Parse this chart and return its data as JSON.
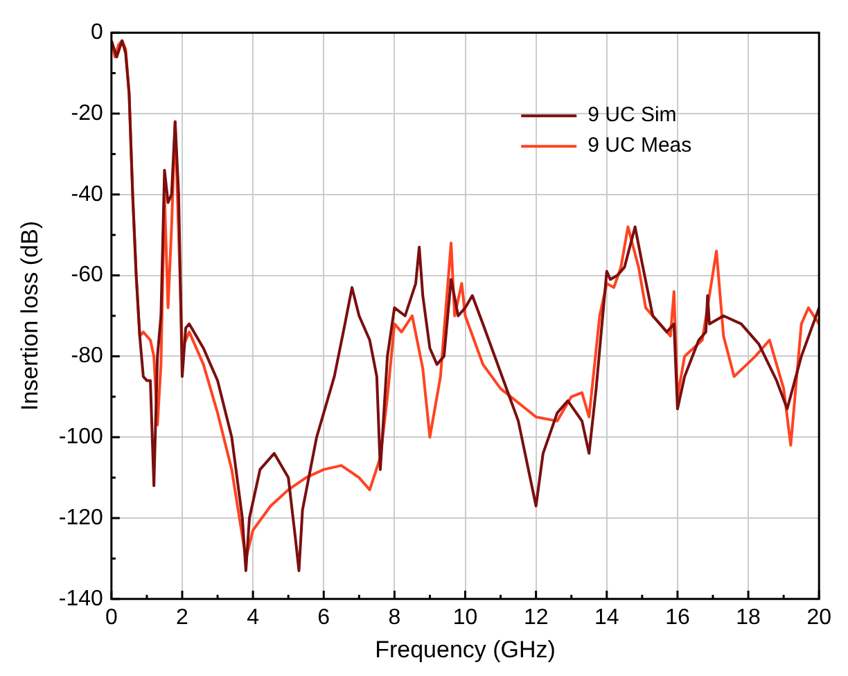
{
  "chart_data": {
    "type": "line",
    "xlabel": "Frequency (GHz)",
    "ylabel": "Insertion loss (dB)",
    "xlim": [
      0,
      20
    ],
    "ylim": [
      -140,
      0
    ],
    "xticks": [
      0,
      2,
      4,
      6,
      8,
      10,
      12,
      14,
      16,
      18,
      20
    ],
    "yticks": [
      -140,
      -120,
      -100,
      -80,
      -60,
      -40,
      -20,
      0
    ],
    "grid": true,
    "legend": "top right",
    "marker": "none",
    "line_style": "solid",
    "series": [
      {
        "name": "9 UC Sim",
        "color": "#7b0f0f",
        "x": [
          0,
          0.15,
          0.3,
          0.4,
          0.5,
          0.6,
          0.7,
          0.8,
          0.9,
          1.0,
          1.1,
          1.2,
          1.3,
          1.4,
          1.5,
          1.6,
          1.7,
          1.8,
          1.9,
          2.0,
          2.1,
          2.2,
          2.6,
          3.0,
          3.4,
          3.7,
          3.8,
          3.9,
          4.2,
          4.6,
          5.0,
          5.2,
          5.3,
          5.4,
          5.8,
          6.3,
          6.6,
          6.8,
          7.0,
          7.3,
          7.5,
          7.6,
          7.8,
          8.0,
          8.3,
          8.6,
          8.7,
          8.8,
          9.0,
          9.2,
          9.4,
          9.6,
          9.8,
          10.0,
          10.2,
          10.5,
          11.0,
          11.5,
          12.0,
          12.2,
          12.6,
          12.9,
          13.3,
          13.5,
          13.7,
          14.0,
          14.1,
          14.3,
          14.5,
          14.8,
          15.0,
          15.3,
          15.7,
          15.9,
          16.0,
          16.2,
          16.6,
          16.8,
          16.85,
          16.9,
          17.3,
          17.8,
          18.3,
          18.8,
          19.1,
          19.5,
          20.0
        ],
        "values": [
          -2,
          -6,
          -2,
          -5,
          -15,
          -40,
          -60,
          -75,
          -85,
          -86,
          -86,
          -112,
          -80,
          -70,
          -34,
          -42,
          -40,
          -22,
          -40,
          -85,
          -73,
          -72,
          -78,
          -86,
          -100,
          -120,
          -133,
          -120,
          -108,
          -104,
          -110,
          -125,
          -133,
          -118,
          -100,
          -85,
          -72,
          -63,
          -70,
          -76,
          -85,
          -108,
          -80,
          -68,
          -70,
          -62,
          -53,
          -65,
          -78,
          -82,
          -80,
          -61,
          -70,
          -68,
          -65,
          -72,
          -84,
          -96,
          -117,
          -104,
          -94,
          -91,
          -96,
          -104,
          -88,
          -59,
          -61,
          -60,
          -58,
          -48,
          -57,
          -70,
          -74,
          -72,
          -93,
          -85,
          -76,
          -74,
          -65,
          -72,
          -70,
          -72,
          -77,
          -86,
          -93,
          -80,
          -68
        ]
      },
      {
        "name": "9 UC Meas",
        "color": "#ff4422",
        "x": [
          0,
          0.1,
          0.2,
          0.3,
          0.4,
          0.5,
          0.6,
          0.7,
          0.8,
          0.9,
          1.1,
          1.2,
          1.3,
          1.4,
          1.5,
          1.6,
          1.7,
          1.8,
          1.9,
          2.0,
          2.2,
          2.6,
          3.0,
          3.4,
          3.8,
          4.0,
          4.5,
          5.0,
          5.5,
          6.0,
          6.5,
          7.0,
          7.3,
          7.6,
          7.8,
          8.0,
          8.2,
          8.5,
          8.8,
          9.0,
          9.3,
          9.6,
          9.7,
          9.9,
          10.0,
          10.5,
          11.0,
          12.0,
          12.6,
          13.0,
          13.3,
          13.5,
          13.8,
          14.0,
          14.2,
          14.4,
          14.6,
          14.9,
          15.1,
          15.5,
          15.8,
          15.9,
          16.0,
          16.2,
          16.7,
          17.1,
          17.3,
          17.6,
          18.2,
          18.6,
          19.0,
          19.2,
          19.5,
          19.7,
          20.0
        ],
        "values": [
          -2,
          -6,
          -3,
          -2,
          -4,
          -15,
          -40,
          -60,
          -75,
          -74,
          -76,
          -80,
          -97,
          -82,
          -40,
          -68,
          -48,
          -22,
          -50,
          -78,
          -74,
          -82,
          -94,
          -108,
          -130,
          -123,
          -117,
          -113,
          -110,
          -108,
          -107,
          -110,
          -113,
          -105,
          -90,
          -72,
          -74,
          -70,
          -83,
          -100,
          -85,
          -52,
          -70,
          -62,
          -70,
          -82,
          -88,
          -95,
          -96,
          -90,
          -89,
          -95,
          -70,
          -62,
          -63,
          -58,
          -48,
          -58,
          -68,
          -72,
          -75,
          -64,
          -90,
          -80,
          -76,
          -54,
          -75,
          -85,
          -80,
          -76,
          -88,
          -102,
          -72,
          -68,
          -72
        ]
      }
    ]
  }
}
